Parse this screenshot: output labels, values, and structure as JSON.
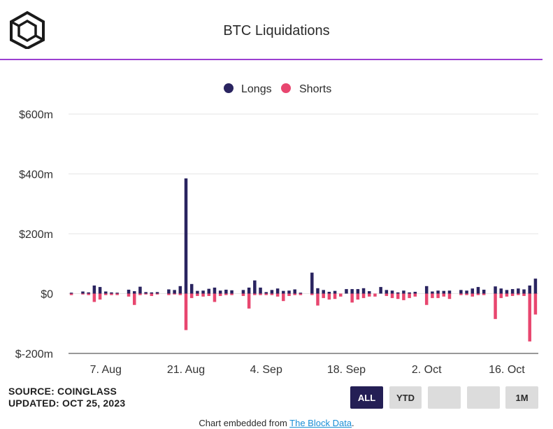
{
  "header": {
    "title": "BTC Liquidations"
  },
  "footer": {
    "source": "SOURCE: COINGLASS",
    "updated": "UPDATED: OCT 25, 2023",
    "embed_prefix": "Chart embedded from",
    "embed_link": "The Block Data",
    "embed_suffix": "."
  },
  "range_buttons": [
    {
      "label": "ALL",
      "active": true
    },
    {
      "label": "YTD",
      "active": false
    },
    {
      "label": "",
      "active": false
    },
    {
      "label": "",
      "active": false
    },
    {
      "label": "1M",
      "active": false
    }
  ],
  "colors": {
    "longs": "#2a2460",
    "shorts": "#e8466f",
    "title_rule": "#9b3fd1"
  },
  "chart_data": {
    "type": "bar",
    "title": "BTC Liquidations",
    "legend_position": "top-center",
    "grid": true,
    "ylim": [
      -200,
      600
    ],
    "y_unit": "$m",
    "y_ticks": [
      "$600m",
      "$400m",
      "$200m",
      "$0",
      "$-200m"
    ],
    "y_tick_values": [
      600,
      400,
      200,
      0,
      -200
    ],
    "x_ticks": [
      "7. Aug",
      "21. Aug",
      "4. Sep",
      "18. Sep",
      "2. Oct",
      "16. Oct"
    ],
    "x_tick_day_index": [
      6,
      20,
      34,
      48,
      62,
      76
    ],
    "start_date": "2023-08-01",
    "series": [
      {
        "name": "Longs",
        "values": [
          3,
          0,
          7,
          4,
          27,
          22,
          7,
          4,
          3,
          0,
          13,
          8,
          23,
          5,
          4,
          5,
          0,
          14,
          12,
          25,
          385,
          32,
          9,
          10,
          16,
          20,
          10,
          13,
          11,
          0,
          12,
          20,
          44,
          20,
          5,
          12,
          17,
          9,
          10,
          14,
          3,
          0,
          70,
          18,
          12,
          6,
          9,
          0,
          15,
          15,
          15,
          18,
          8,
          0,
          22,
          12,
          10,
          4,
          10,
          4,
          6,
          0,
          25,
          7,
          10,
          9,
          10,
          0,
          12,
          10,
          17,
          22,
          13,
          0,
          24,
          17,
          12,
          15,
          17,
          14,
          27,
          50
        ]
      },
      {
        "name": "Shorts",
        "values": [
          -5,
          0,
          -3,
          -5,
          -28,
          -20,
          -5,
          -5,
          -5,
          0,
          -10,
          -38,
          -5,
          -3,
          -8,
          -3,
          0,
          -5,
          -3,
          -5,
          -122,
          -15,
          -8,
          -10,
          -8,
          -28,
          -8,
          -5,
          -5,
          0,
          -8,
          -50,
          -5,
          -5,
          -5,
          -5,
          -10,
          -25,
          -8,
          -5,
          -5,
          0,
          -5,
          -40,
          -15,
          -20,
          -18,
          -10,
          0,
          -30,
          -20,
          -15,
          -10,
          -10,
          0,
          -8,
          -15,
          -18,
          -22,
          -15,
          -10,
          0,
          -38,
          -15,
          -15,
          -10,
          -18,
          0,
          -5,
          -5,
          -10,
          -5,
          -5,
          0,
          -85,
          -15,
          -10,
          -8,
          -5,
          -8,
          -160,
          -70
        ]
      }
    ]
  }
}
